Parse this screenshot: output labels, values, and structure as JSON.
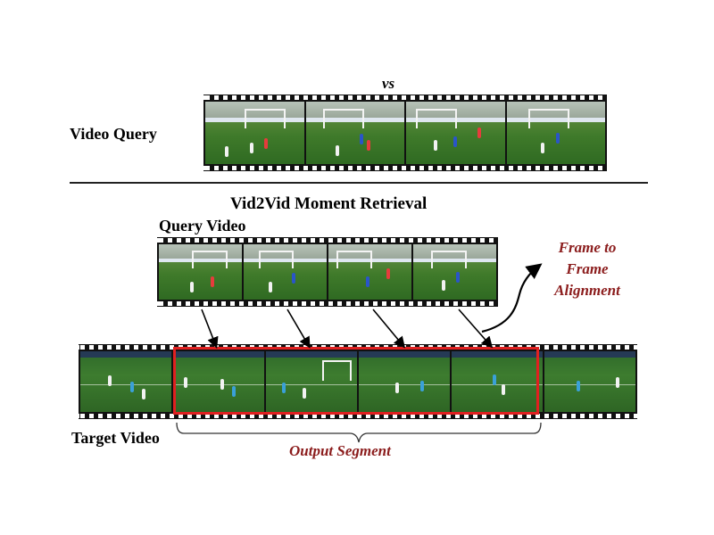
{
  "top_section": {
    "vs_label": "vs",
    "video_query_label": "Video Query"
  },
  "bottom_section": {
    "title": "Vid2Vid Moment Retrieval",
    "query_video_label": "Query Video",
    "alignment_label_line1": "Frame to",
    "alignment_label_line2": "Frame",
    "alignment_label_line3": "Alignment",
    "target_video_label": "Target Video",
    "output_segment_label": "Output Segment"
  },
  "colors": {
    "highlight_red": "#e02020",
    "annotation_red": "#8b1c1c",
    "film_black": "#111111"
  }
}
